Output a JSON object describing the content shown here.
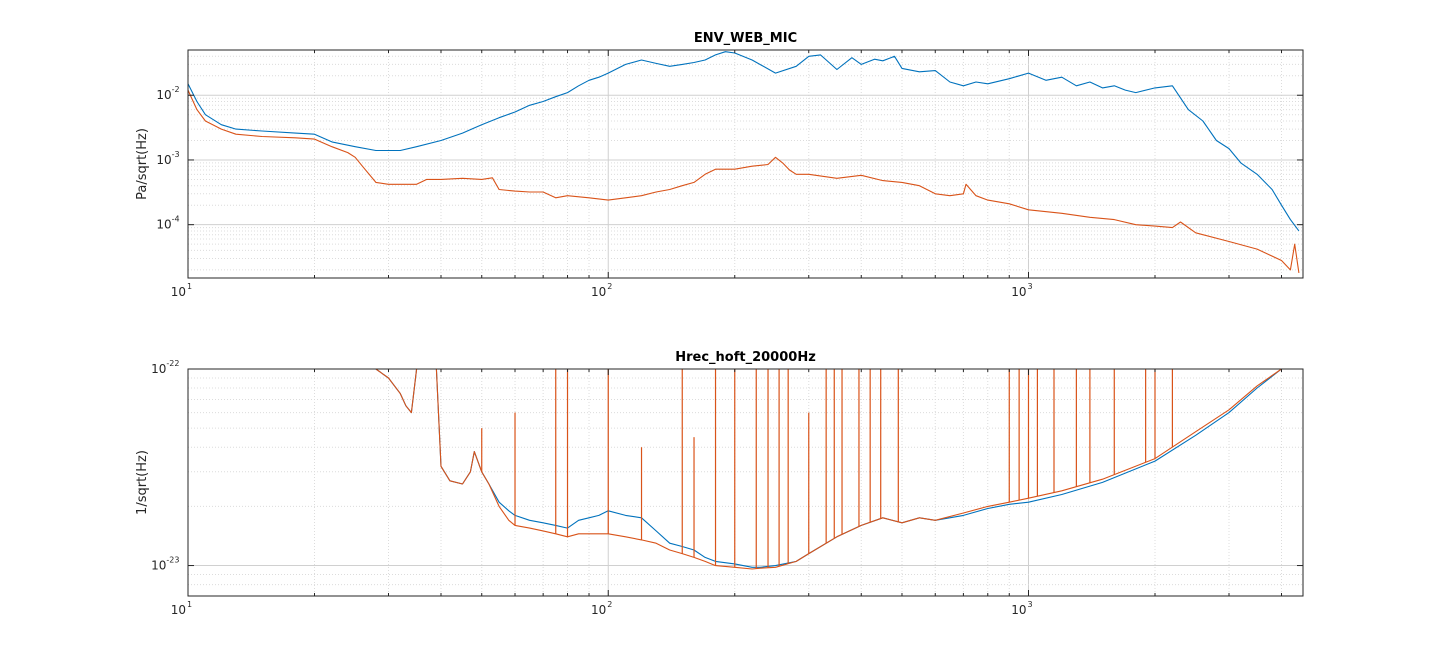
{
  "chart_data": [
    {
      "type": "line",
      "title": "ENV_WEB_MIC",
      "xlabel": "",
      "ylabel": "Pa/sqrt(Hz)",
      "xscale": "log",
      "yscale": "log",
      "xlim": [
        10,
        4500
      ],
      "ylim": [
        1.5e-05,
        0.05
      ],
      "grid": "major and minor, dotted",
      "x_ticks": [
        {
          "base": "10",
          "exp": "1"
        },
        {
          "base": "10",
          "exp": "2"
        },
        {
          "base": "10",
          "exp": "3"
        }
      ],
      "y_ticks": [
        {
          "base": "10",
          "exp": "-4"
        },
        {
          "base": "10",
          "exp": "-3"
        },
        {
          "base": "10",
          "exp": "-2"
        }
      ],
      "series": [
        {
          "color": "#0072BD",
          "x": [
            10,
            10.5,
            11,
            12,
            13,
            15,
            18,
            20,
            22,
            25,
            28,
            32,
            35,
            40,
            45,
            50,
            55,
            60,
            65,
            70,
            75,
            80,
            85,
            90,
            95,
            100,
            110,
            120,
            130,
            140,
            150,
            160,
            170,
            180,
            190,
            200,
            220,
            250,
            280,
            300,
            320,
            350,
            380,
            400,
            430,
            450,
            480,
            500,
            550,
            600,
            650,
            700,
            750,
            800,
            900,
            1000,
            1100,
            1200,
            1300,
            1400,
            1500,
            1600,
            1700,
            1800,
            2000,
            2200,
            2400,
            2600,
            2800,
            3000,
            3200,
            3500,
            3800,
            4000,
            4200,
            4400
          ],
          "values": [
            0.015,
            0.008,
            0.005,
            0.0035,
            0.003,
            0.0028,
            0.0026,
            0.0025,
            0.0019,
            0.0016,
            0.0014,
            0.0014,
            0.0016,
            0.002,
            0.0026,
            0.0035,
            0.0045,
            0.0055,
            0.007,
            0.008,
            0.0095,
            0.011,
            0.014,
            0.017,
            0.019,
            0.022,
            0.03,
            0.035,
            0.031,
            0.028,
            0.03,
            0.032,
            0.035,
            0.042,
            0.047,
            0.045,
            0.035,
            0.022,
            0.028,
            0.04,
            0.042,
            0.025,
            0.038,
            0.03,
            0.036,
            0.034,
            0.04,
            0.026,
            0.023,
            0.024,
            0.016,
            0.014,
            0.016,
            0.015,
            0.018,
            0.022,
            0.017,
            0.019,
            0.014,
            0.016,
            0.013,
            0.014,
            0.012,
            0.011,
            0.013,
            0.014,
            0.006,
            0.004,
            0.002,
            0.0015,
            0.0009,
            0.0006,
            0.00035,
            0.0002,
            0.00012,
            8e-05
          ]
        },
        {
          "color": "#D95319",
          "x": [
            10,
            10.5,
            11,
            12,
            13,
            15,
            18,
            20,
            22,
            24,
            25,
            26,
            28,
            30,
            32,
            35,
            37,
            40,
            45,
            50,
            53,
            55,
            60,
            65,
            70,
            75,
            80,
            90,
            100,
            110,
            120,
            130,
            140,
            150,
            160,
            170,
            180,
            200,
            220,
            240,
            250,
            260,
            270,
            280,
            300,
            350,
            400,
            450,
            500,
            550,
            600,
            650,
            700,
            710,
            750,
            800,
            900,
            1000,
            1200,
            1400,
            1600,
            1800,
            2000,
            2200,
            2300,
            2500,
            3000,
            3500,
            4000,
            4200,
            4300,
            4400
          ],
          "values": [
            0.012,
            0.006,
            0.004,
            0.003,
            0.0025,
            0.0023,
            0.0022,
            0.0021,
            0.0016,
            0.0013,
            0.0011,
            0.0008,
            0.00045,
            0.00042,
            0.00042,
            0.00042,
            0.0005,
            0.0005,
            0.00052,
            0.0005,
            0.00053,
            0.00035,
            0.00033,
            0.00032,
            0.00032,
            0.00026,
            0.00028,
            0.00026,
            0.00024,
            0.00026,
            0.00028,
            0.00032,
            0.00035,
            0.0004,
            0.00045,
            0.0006,
            0.00072,
            0.00072,
            0.0008,
            0.00085,
            0.0011,
            0.0009,
            0.0007,
            0.0006,
            0.0006,
            0.00052,
            0.00058,
            0.00048,
            0.00045,
            0.0004,
            0.0003,
            0.00028,
            0.0003,
            0.00042,
            0.00028,
            0.00024,
            0.00021,
            0.00017,
            0.00015,
            0.00013,
            0.00012,
            0.0001,
            9.5e-05,
            9e-05,
            0.00011,
            7.5e-05,
            5.5e-05,
            4.2e-05,
            2.8e-05,
            2e-05,
            5e-05,
            1.8e-05
          ]
        }
      ]
    },
    {
      "type": "line",
      "title": "Hrec_hoft_20000Hz",
      "xlabel": "",
      "ylabel": "1/sqrt(Hz)",
      "xscale": "log",
      "yscale": "log",
      "xlim": [
        10,
        4500
      ],
      "ylim": [
        7e-24,
        1e-22
      ],
      "grid": "major and minor, dotted",
      "x_ticks": [
        {
          "base": "10",
          "exp": "1"
        },
        {
          "base": "10",
          "exp": "2"
        },
        {
          "base": "10",
          "exp": "3"
        }
      ],
      "y_ticks": [
        {
          "base": "10",
          "exp": "-23"
        },
        {
          "base": "10",
          "exp": "-22"
        }
      ],
      "series": [
        {
          "color": "#0072BD",
          "x": [
            28,
            30,
            32,
            33,
            34,
            35,
            36,
            37,
            38,
            39,
            40,
            42,
            45,
            47,
            48,
            50,
            52,
            55,
            58,
            60,
            65,
            70,
            75,
            80,
            85,
            90,
            95,
            100,
            110,
            120,
            130,
            140,
            150,
            160,
            170,
            180,
            200,
            220,
            230,
            250,
            280,
            300,
            350,
            400,
            450,
            500,
            550,
            600,
            700,
            800,
            900,
            1000,
            1200,
            1500,
            2000,
            2500,
            3000,
            3500,
            4000
          ],
          "values": [
            1e-22,
            9e-23,
            7.5e-23,
            6.5e-23,
            6e-23,
            1e-22,
            1e-22,
            1e-22,
            1e-22,
            1e-22,
            3.2e-23,
            2.7e-23,
            2.6e-23,
            3e-23,
            3.8e-23,
            3e-23,
            2.6e-23,
            2.1e-23,
            1.9e-23,
            1.8e-23,
            1.7e-23,
            1.65e-23,
            1.6e-23,
            1.55e-23,
            1.7e-23,
            1.75e-23,
            1.8e-23,
            1.9e-23,
            1.8e-23,
            1.75e-23,
            1.5e-23,
            1.3e-23,
            1.25e-23,
            1.2e-23,
            1.1e-23,
            1.05e-23,
            1.02e-23,
            9.8e-24,
            9.8e-24,
            1e-23,
            1.05e-23,
            1.15e-23,
            1.4e-23,
            1.6e-23,
            1.75e-23,
            1.65e-23,
            1.75e-23,
            1.7e-23,
            1.8e-23,
            1.95e-23,
            2.05e-23,
            2.1e-23,
            2.3e-23,
            2.65e-23,
            3.4e-23,
            4.6e-23,
            6e-23,
            8e-23,
            1e-22
          ]
        },
        {
          "color": "#D95319",
          "x": [
            28,
            30,
            32,
            33,
            34,
            35,
            36,
            37,
            38,
            39,
            40,
            42,
            45,
            47,
            48,
            50,
            52,
            55,
            58,
            60,
            65,
            70,
            75,
            80,
            85,
            90,
            95,
            100,
            110,
            120,
            130,
            140,
            150,
            160,
            170,
            180,
            200,
            220,
            230,
            250,
            280,
            300,
            350,
            400,
            450,
            500,
            550,
            600,
            700,
            800,
            900,
            1000,
            1200,
            1500,
            2000,
            2500,
            3000,
            3500,
            4000
          ],
          "values": [
            1e-22,
            9e-23,
            7.5e-23,
            6.5e-23,
            6e-23,
            1e-22,
            1e-22,
            1e-22,
            1e-22,
            1e-22,
            3.2e-23,
            2.7e-23,
            2.6e-23,
            3e-23,
            3.8e-23,
            3e-23,
            2.6e-23,
            2e-23,
            1.7e-23,
            1.6e-23,
            1.55e-23,
            1.5e-23,
            1.45e-23,
            1.4e-23,
            1.45e-23,
            1.45e-23,
            1.45e-23,
            1.45e-23,
            1.4e-23,
            1.35e-23,
            1.3e-23,
            1.2e-23,
            1.15e-23,
            1.1e-23,
            1.05e-23,
            1e-23,
            9.8e-24,
            9.6e-24,
            9.7e-24,
            9.8e-24,
            1.05e-23,
            1.15e-23,
            1.4e-23,
            1.6e-23,
            1.75e-23,
            1.65e-23,
            1.75e-23,
            1.7e-23,
            1.85e-23,
            2e-23,
            2.1e-23,
            2.2e-23,
            2.4e-23,
            2.75e-23,
            3.5e-23,
            4.8e-23,
            6.2e-23,
            8.2e-23,
            1e-22
          ],
          "spikes": [
            {
              "x": 50,
              "y": 5e-23
            },
            {
              "x": 60,
              "y": 6e-23
            },
            {
              "x": 75,
              "y": 1e-22
            },
            {
              "x": 80,
              "y": 1e-22
            },
            {
              "x": 100,
              "y": 1e-22
            },
            {
              "x": 120,
              "y": 4e-23
            },
            {
              "x": 150,
              "y": 1e-22
            },
            {
              "x": 160,
              "y": 4.5e-23
            },
            {
              "x": 180,
              "y": 1e-22
            },
            {
              "x": 200,
              "y": 1e-22
            },
            {
              "x": 225,
              "y": 1e-22
            },
            {
              "x": 240,
              "y": 1e-22
            },
            {
              "x": 255,
              "y": 1e-22
            },
            {
              "x": 268,
              "y": 1e-22
            },
            {
              "x": 300,
              "y": 6e-23
            },
            {
              "x": 330,
              "y": 1e-22
            },
            {
              "x": 345,
              "y": 1e-22
            },
            {
              "x": 360,
              "y": 1e-22
            },
            {
              "x": 395,
              "y": 1e-22
            },
            {
              "x": 420,
              "y": 1e-22
            },
            {
              "x": 445,
              "y": 1e-22
            },
            {
              "x": 490,
              "y": 1e-22
            },
            {
              "x": 900,
              "y": 1e-22
            },
            {
              "x": 950,
              "y": 1e-22
            },
            {
              "x": 1000,
              "y": 1e-22
            },
            {
              "x": 1050,
              "y": 1e-22
            },
            {
              "x": 1150,
              "y": 1e-22
            },
            {
              "x": 1300,
              "y": 1e-22
            },
            {
              "x": 1400,
              "y": 1e-22
            },
            {
              "x": 1600,
              "y": 1e-22
            },
            {
              "x": 1900,
              "y": 1e-22
            },
            {
              "x": 2000,
              "y": 1e-22
            },
            {
              "x": 2200,
              "y": 1e-22
            }
          ]
        }
      ]
    }
  ]
}
